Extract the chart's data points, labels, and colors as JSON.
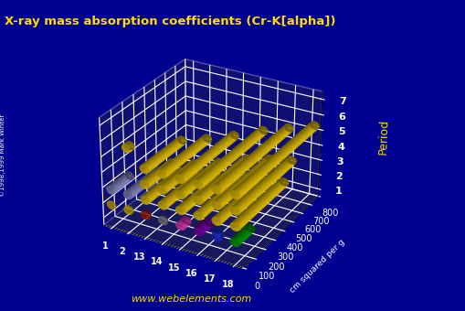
{
  "title": "X-ray mass absorption coefficients (Cr-K[alpha])",
  "title_color": "#FFDD00",
  "background_color": "#000090",
  "floor_color": "#404040",
  "ylabel": "cm squared per g",
  "zlabel": "Period",
  "x_tick_labels": [
    "1",
    "2",
    "13",
    "14",
    "15",
    "16",
    "17",
    "18"
  ],
  "z_tick_labels": [
    "1",
    "2",
    "3",
    "4",
    "5",
    "6",
    "7"
  ],
  "ylim": [
    0,
    800
  ],
  "yticks": [
    0,
    100,
    200,
    300,
    400,
    500,
    600,
    700,
    800
  ],
  "website": "www.webelements.com",
  "data": {
    "1": [
      0.3,
      0.3,
      0,
      0,
      0,
      0,
      0,
      0.3
    ],
    "2": [
      2.5,
      8.0,
      11,
      6.5,
      58,
      100,
      32,
      150
    ],
    "3": [
      170,
      290,
      330,
      380,
      380,
      450,
      470,
      500
    ],
    "4": [
      0,
      0,
      260,
      310,
      380,
      480,
      540,
      580
    ],
    "5": [
      0,
      0,
      350,
      430,
      530,
      650,
      740,
      830
    ],
    "6": [
      0,
      35,
      0,
      0,
      0,
      0,
      0,
      0
    ],
    "7": [
      0,
      0,
      0,
      0,
      0,
      0,
      0,
      0
    ]
  },
  "bar_colors": {
    "1": [
      "#DDB8D8",
      "#DDB8D8",
      "#DDB8D8",
      "#DDB8D8",
      "#DDB8D8",
      "#DDB8D8",
      "#DDB8D8",
      "#DDB8D8"
    ],
    "2": [
      "#FFD700",
      "#FFD700",
      "#CC2200",
      "#999999",
      "#FF44CC",
      "#8800BB",
      "#2233FF",
      "#00AA00"
    ],
    "3": [
      "#9898D8",
      "#9898D8",
      "#FFD700",
      "#FFD700",
      "#FFD700",
      "#FFD700",
      "#FFD700",
      "#FFD700"
    ],
    "4": [
      "#9898D8",
      "#9898D8",
      "#FFD700",
      "#FFD700",
      "#FFD700",
      "#FFD700",
      "#FFD700",
      "#FFD700"
    ],
    "5": [
      "#9898D8",
      "#9898D8",
      "#FFD700",
      "#FFD700",
      "#FFD700",
      "#FFD700",
      "#FFD700",
      "#FFD700"
    ],
    "6": [
      "#9898D8",
      "#FFD700",
      "#9898D8",
      "#9898D8",
      "#9898D8",
      "#9898D8",
      "#9898D8",
      "#9898D8"
    ],
    "7": [
      "#9898D8",
      "#9898D8",
      "#9898D8",
      "#9898D8",
      "#9898D8",
      "#9898D8",
      "#9898D8",
      "#9898D8"
    ]
  },
  "elev": 28,
  "azim": -60
}
